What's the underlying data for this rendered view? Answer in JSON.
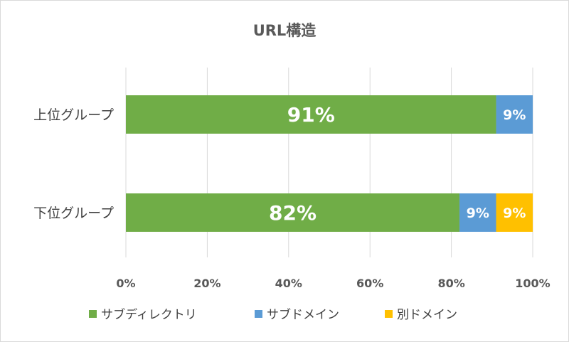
{
  "chart_data": {
    "type": "bar",
    "orientation": "horizontal",
    "stacked": "percent",
    "title": "URL構造",
    "categories": [
      "上位グループ",
      "下位グループ"
    ],
    "series": [
      {
        "name": "サブディレクトリ",
        "values": [
          91,
          82
        ],
        "labels": [
          "91%",
          "82%"
        ],
        "color": "#70ad47"
      },
      {
        "name": "サブドメイン",
        "values": [
          9,
          9
        ],
        "labels": [
          "9%",
          "9%"
        ],
        "color": "#5b9bd5"
      },
      {
        "name": "別ドメイン",
        "values": [
          0,
          9
        ],
        "labels": [
          "",
          "9%"
        ],
        "color": "#ffc000"
      }
    ],
    "xlim": [
      0,
      100
    ],
    "xticks": [
      "0%",
      "20%",
      "40%",
      "60%",
      "80%",
      "100%"
    ],
    "grid": true,
    "legend_position": "bottom"
  }
}
